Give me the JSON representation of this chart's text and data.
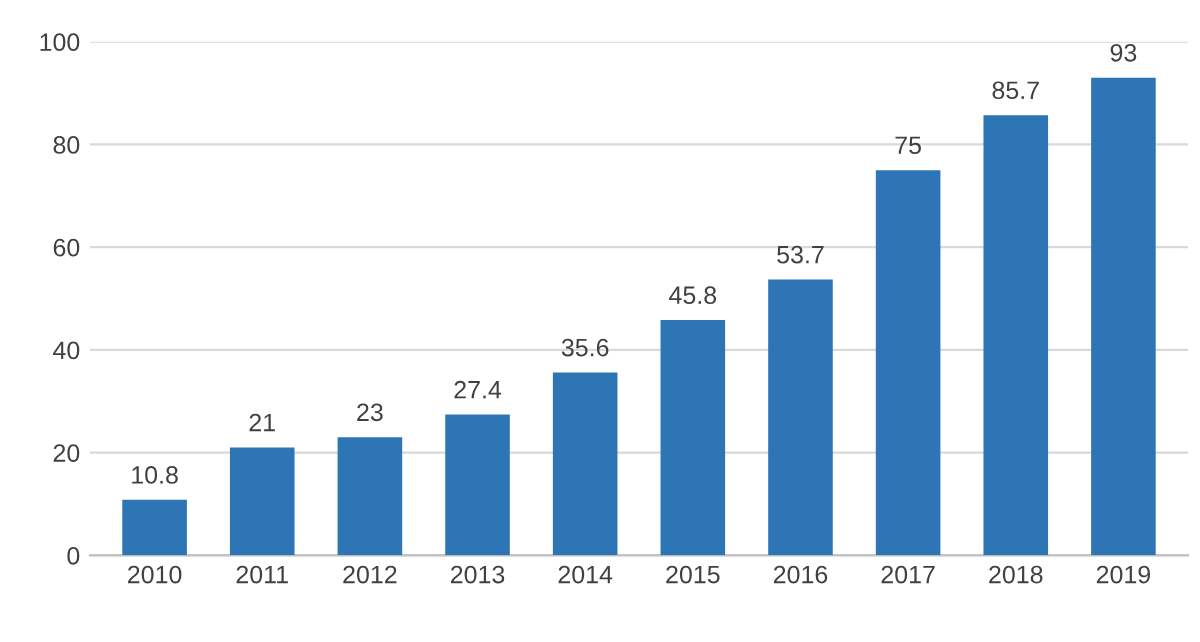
{
  "chart_data": {
    "type": "bar",
    "categories": [
      "2010",
      "2011",
      "2012",
      "2013",
      "2014",
      "2015",
      "2016",
      "2017",
      "2018",
      "2019"
    ],
    "values": [
      10.8,
      21,
      23,
      27.4,
      35.6,
      45.8,
      53.7,
      75,
      85.7,
      93
    ],
    "color": "#2e75b6",
    "ylim": [
      0,
      100
    ],
    "yticks": [
      0,
      20,
      40,
      60,
      80,
      100
    ],
    "grid": "y",
    "data_labels": true
  }
}
